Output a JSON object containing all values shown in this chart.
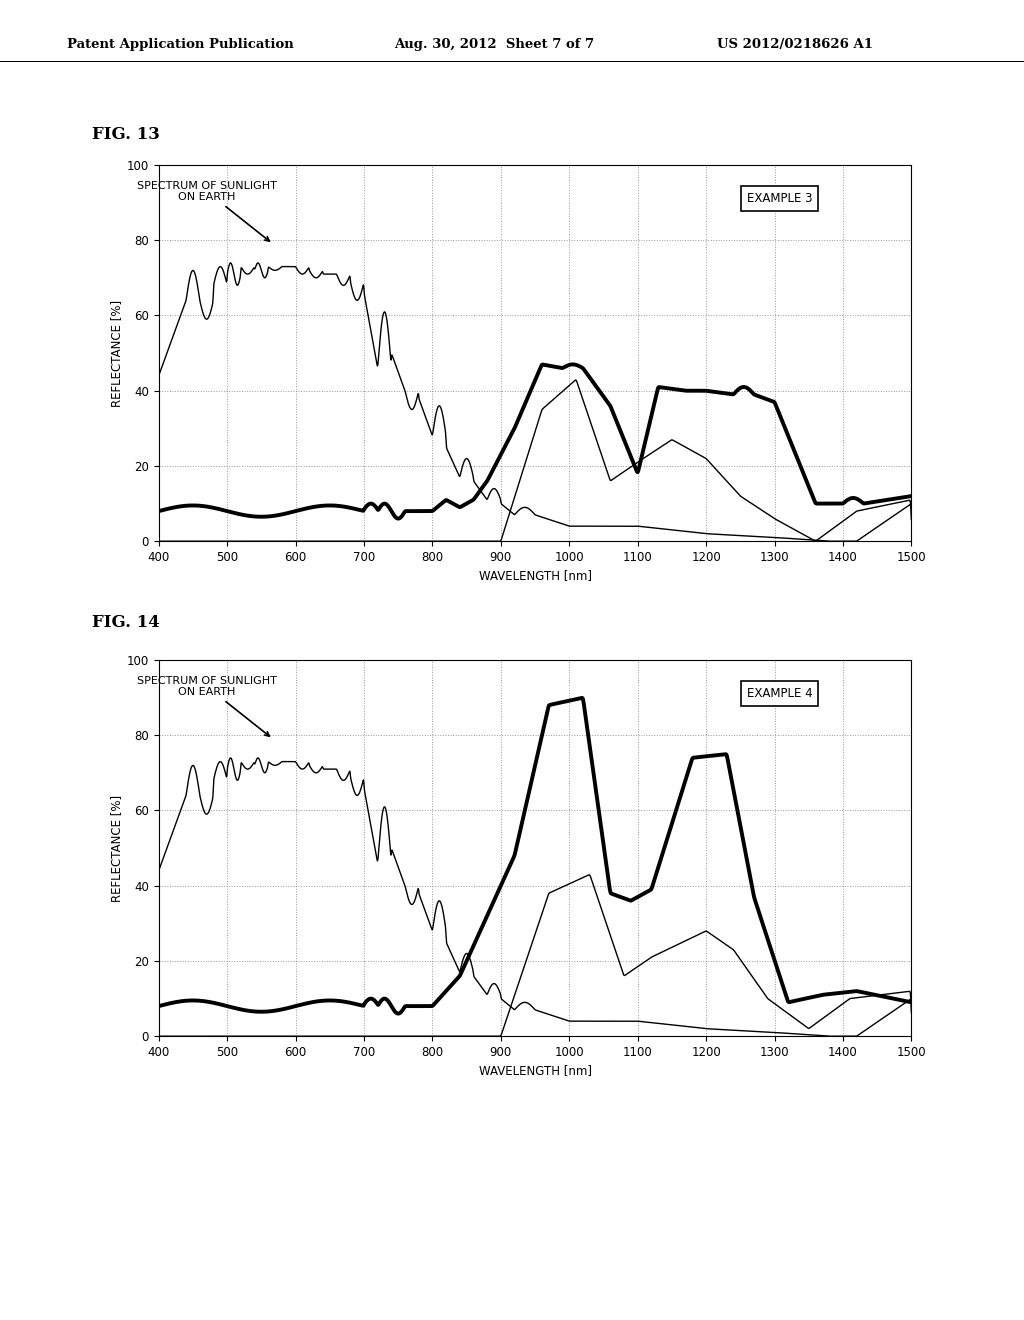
{
  "header_left": "Patent Application Publication",
  "header_mid": "Aug. 30, 2012  Sheet 7 of 7",
  "header_right": "US 2012/0218626 A1",
  "fig13_label": "FIG. 13",
  "fig14_label": "FIG. 14",
  "example3_label": "EXAMPLE 3",
  "example4_label": "EXAMPLE 4",
  "annotation_text": "SPECTRUM OF SUNLIGHT\nON EARTH",
  "ylabel": "REFLECTANCE [%]",
  "xlabel": "WAVELENGTH [nm]",
  "xlim": [
    400,
    1500
  ],
  "ylim": [
    0,
    100
  ],
  "xticks": [
    400,
    500,
    600,
    700,
    800,
    900,
    1000,
    1100,
    1200,
    1300,
    1400,
    1500
  ],
  "yticks": [
    0,
    20,
    40,
    60,
    80,
    100
  ],
  "bg_color": "#ffffff",
  "line_color": "#000000"
}
